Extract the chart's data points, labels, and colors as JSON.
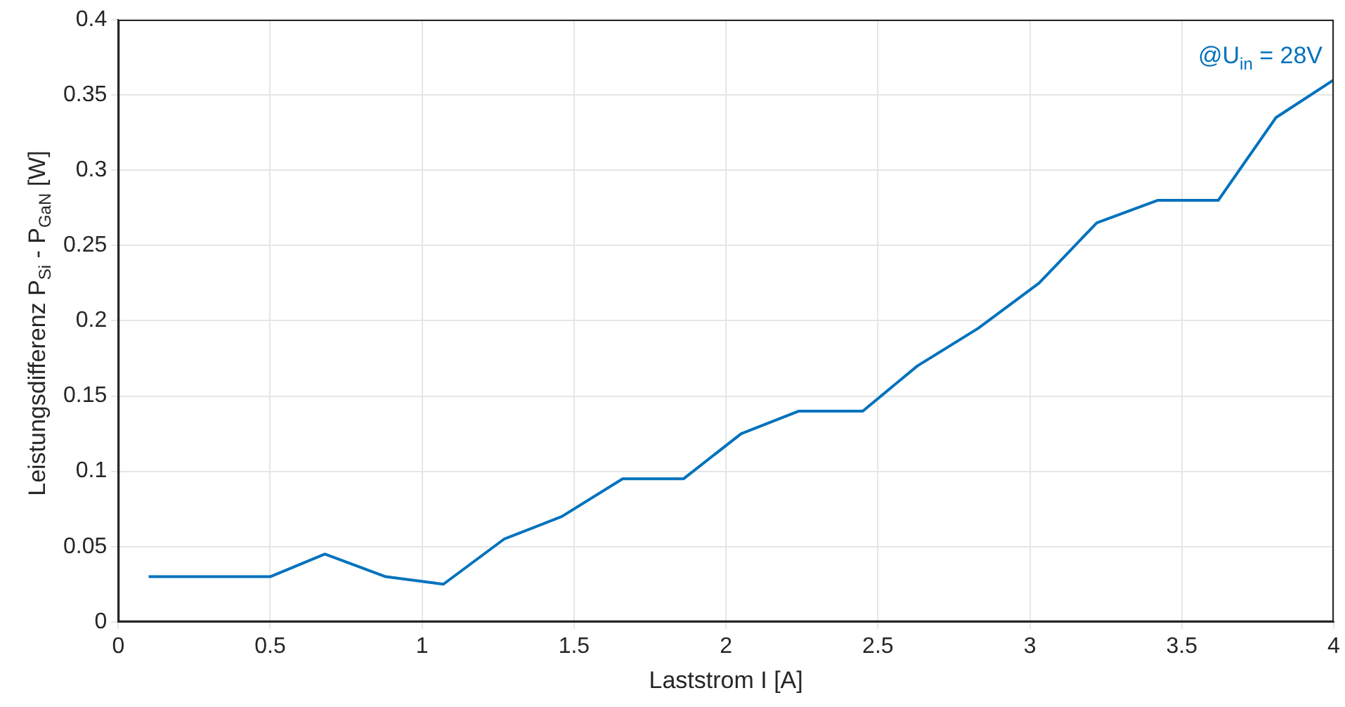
{
  "chart_data": {
    "type": "line",
    "xlabel": "Laststrom I [A]",
    "ylabel": "Leistungsdifferenz P$_{Si}$ - P$_{GaN}$ [W]",
    "annotations": [
      "@U$_{in}$ = 28V"
    ],
    "x": [
      0.1,
      0.5,
      0.68,
      0.88,
      1.07,
      1.27,
      1.46,
      1.66,
      1.86,
      2.05,
      2.24,
      2.45,
      2.63,
      2.83,
      3.03,
      3.22,
      3.42,
      3.62,
      3.81,
      4.0
    ],
    "series": [
      {
        "color": "#0072bd",
        "values": [
          0.03,
          0.03,
          0.045,
          0.03,
          0.025,
          0.055,
          0.07,
          0.095,
          0.095,
          0.125,
          0.14,
          0.14,
          0.17,
          0.195,
          0.225,
          0.265,
          0.28,
          0.28,
          0.335,
          0.36
        ]
      }
    ],
    "xlim": [
      0,
      4
    ],
    "xticks": [
      0,
      0.5,
      1,
      1.5,
      2,
      2.5,
      3,
      3.5,
      4
    ],
    "ylim": [
      0,
      0.4
    ],
    "yticks": [
      0,
      0.05,
      0.1,
      0.15,
      0.2,
      0.25,
      0.3,
      0.35,
      0.4
    ],
    "grid": true,
    "legend": false,
    "marker": "none",
    "line_style": "solid"
  }
}
